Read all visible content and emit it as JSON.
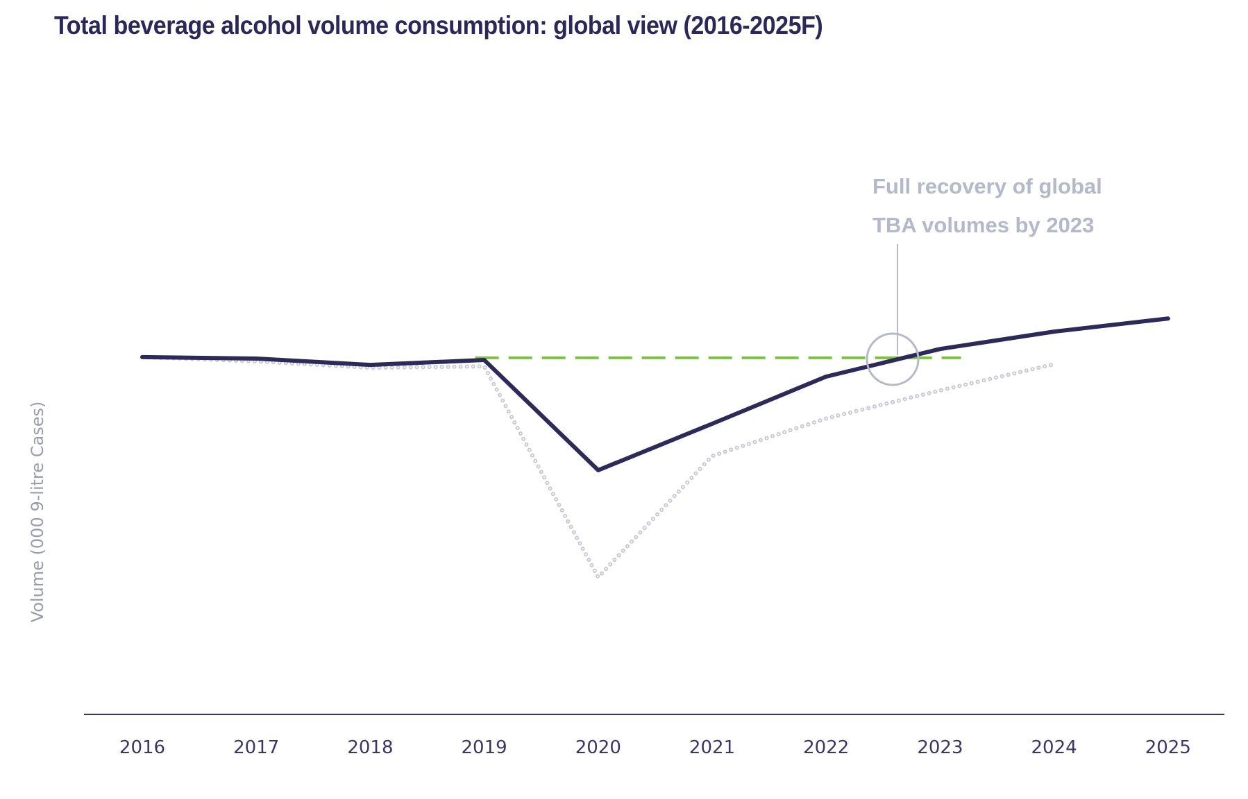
{
  "chart_data": {
    "type": "line",
    "title": "Total beverage alcohol volume consumption: global view (2016-2025F)",
    "ylabel": "Volume (000 9-litre Cases)",
    "xlabel": "",
    "categories": [
      "2016",
      "2017",
      "2018",
      "2019",
      "2020",
      "2021",
      "2022",
      "2023",
      "2024",
      "2025"
    ],
    "ylim": [
      0,
      200
    ],
    "grid": false,
    "y_ticks_shown": false,
    "series": [
      {
        "style": "solid",
        "color": "#2d2a5a",
        "values": [
          100.8,
          100.4,
          98.6,
          100,
          68.9,
          82.0,
          95.3,
          103.1,
          108.0,
          111.7
        ]
      },
      {
        "style": "dotted",
        "color": "#c4c6d0",
        "values": [
          100.8,
          99.6,
          97.8,
          98.2,
          38.7,
          72.9,
          83.5,
          91.4,
          98.8,
          null
        ]
      }
    ],
    "reference_line": {
      "style": "dashed",
      "color": "#7cc242",
      "value": 100.6,
      "x_start": "2019",
      "x_end": "2023"
    },
    "annotation": {
      "lines": [
        "Full recovery of global",
        "TBA volumes by 2023"
      ],
      "color": "#b4b8c8",
      "points_to": "2022-2023 crossing"
    }
  }
}
